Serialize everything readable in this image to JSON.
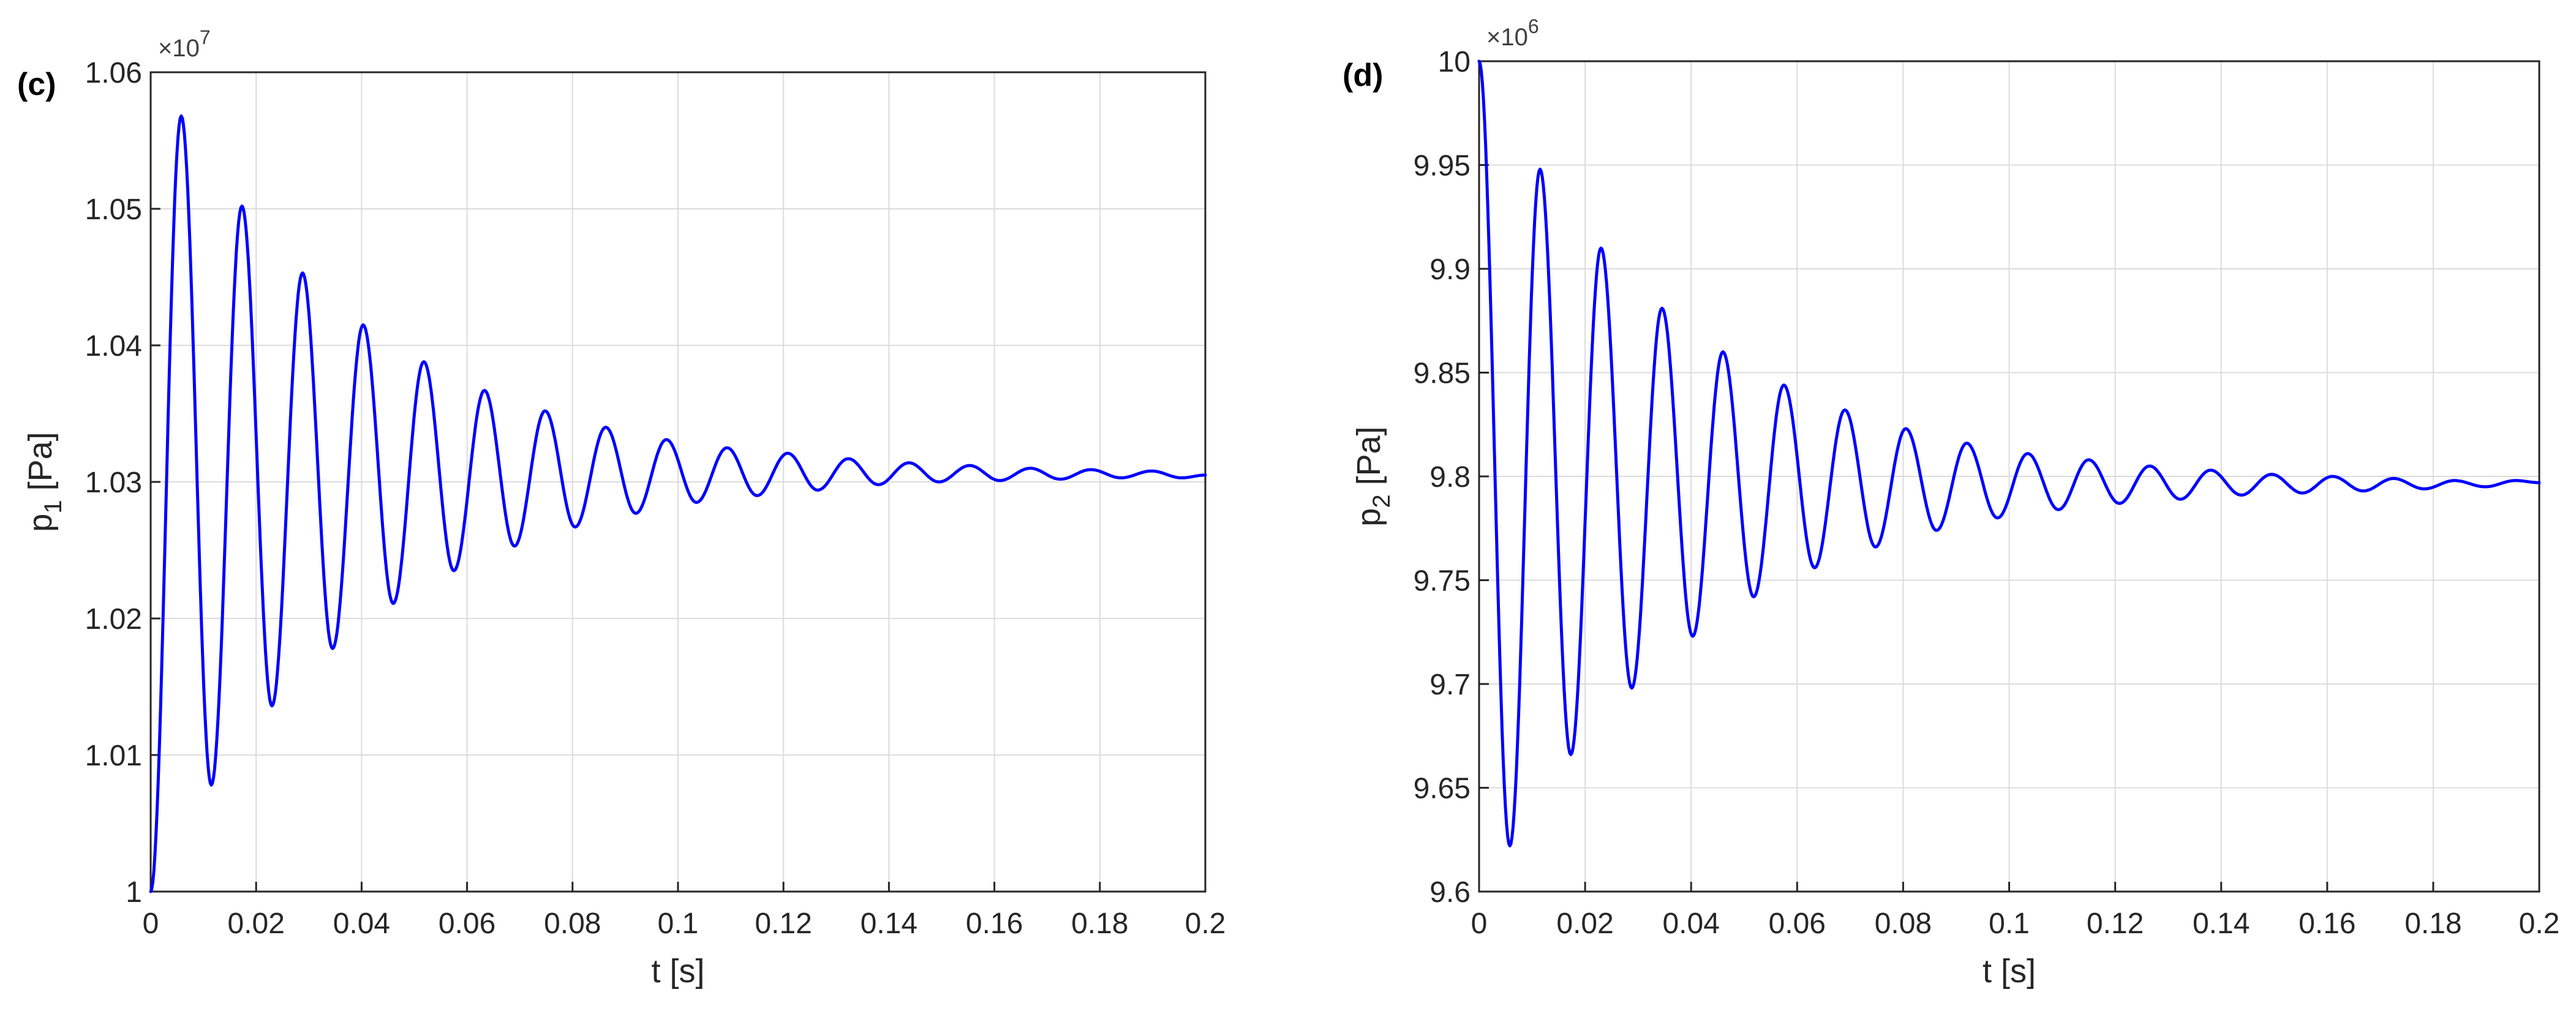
{
  "colors": {
    "series": "#0000ff",
    "axis": "#262626",
    "grid": "#dcdcdc",
    "background": "#ffffff"
  },
  "chart_data": [
    {
      "type": "line",
      "panel_label": "(c)",
      "title": "",
      "xlabel": "t [s]",
      "ylabel_main": "p",
      "ylabel_sub": "1",
      "ylabel_tail": " [Pa]",
      "exponent_base": "×10",
      "exponent_power": "7",
      "xlim": [
        0,
        0.2
      ],
      "ylim": [
        1.0,
        1.06
      ],
      "grid": true,
      "xticks": [
        0,
        0.02,
        0.04,
        0.06,
        0.08,
        0.1,
        0.12,
        0.14,
        0.16,
        0.18,
        0.2
      ],
      "xtick_labels": [
        "0",
        "0.02",
        "0.04",
        "0.06",
        "0.08",
        "0.1",
        "0.12",
        "0.14",
        "0.16",
        "0.18",
        "0.2"
      ],
      "yticks": [
        1.0,
        1.01,
        1.02,
        1.03,
        1.04,
        1.05,
        1.06
      ],
      "ytick_labels": [
        "1",
        "1.01",
        "1.02",
        "1.03",
        "1.04",
        "1.05",
        "1.06"
      ],
      "series": [
        {
          "color": "#0000ff",
          "x": [
            0,
            0.0058,
            0.0115,
            0.0173,
            0.023,
            0.0288,
            0.0345,
            0.0403,
            0.046,
            0.0518,
            0.0575,
            0.0633,
            0.069,
            0.0748,
            0.0805,
            0.0863,
            0.092,
            0.0978,
            0.1035,
            0.1093,
            0.115,
            0.1208,
            0.1265,
            0.1323,
            0.138,
            0.1438,
            0.1495,
            0.1553,
            0.161,
            0.1668,
            0.1725,
            0.1783,
            0.184,
            0.1898,
            0.1955,
            0.2
          ],
          "y": [
            1.0,
            1.0568,
            1.0078,
            1.0502,
            1.0136,
            1.0453,
            1.0178,
            1.0415,
            1.0211,
            1.0388,
            1.0235,
            1.0367,
            1.0253,
            1.0352,
            1.0267,
            1.034,
            1.0277,
            1.0331,
            1.0285,
            1.0325,
            1.029,
            1.0321,
            1.0294,
            1.0317,
            1.0298,
            1.0314,
            1.03,
            1.0312,
            1.0301,
            1.031,
            1.0302,
            1.0309,
            1.0303,
            1.0308,
            1.0303,
            1.0305
          ]
        }
      ]
    },
    {
      "type": "line",
      "panel_label": "(d)",
      "title": "",
      "xlabel": "t [s]",
      "ylabel_main": "p",
      "ylabel_sub": "2",
      "ylabel_tail": " [Pa]",
      "exponent_base": "×10",
      "exponent_power": "6",
      "xlim": [
        0,
        0.2
      ],
      "ylim": [
        9.6,
        10.0
      ],
      "grid": true,
      "xticks": [
        0,
        0.02,
        0.04,
        0.06,
        0.08,
        0.1,
        0.12,
        0.14,
        0.16,
        0.18,
        0.2
      ],
      "xtick_labels": [
        "0",
        "0.02",
        "0.04",
        "0.06",
        "0.08",
        "0.1",
        "0.12",
        "0.14",
        "0.16",
        "0.18",
        "0.2"
      ],
      "yticks": [
        9.6,
        9.65,
        9.7,
        9.75,
        9.8,
        9.85,
        9.9,
        9.95,
        10.0
      ],
      "ytick_labels": [
        "9.6",
        "9.65",
        "9.7",
        "9.75",
        "9.8",
        "9.85",
        "9.9",
        "9.95",
        "10"
      ],
      "series": [
        {
          "color": "#0000ff",
          "x": [
            0,
            0.0058,
            0.0115,
            0.0173,
            0.023,
            0.0288,
            0.0345,
            0.0403,
            0.046,
            0.0518,
            0.0575,
            0.0633,
            0.069,
            0.0748,
            0.0805,
            0.0863,
            0.092,
            0.0978,
            0.1035,
            0.1093,
            0.115,
            0.1208,
            0.1265,
            0.1323,
            0.138,
            0.1438,
            0.1495,
            0.1553,
            0.161,
            0.1668,
            0.1725,
            0.1783,
            0.184,
            0.1898,
            0.1955,
            0.2
          ],
          "y": [
            10.0,
            9.622,
            9.948,
            9.666,
            9.91,
            9.698,
            9.881,
            9.723,
            9.86,
            9.742,
            9.844,
            9.756,
            9.832,
            9.766,
            9.823,
            9.774,
            9.816,
            9.78,
            9.811,
            9.784,
            9.808,
            9.787,
            9.805,
            9.789,
            9.803,
            9.791,
            9.801,
            9.792,
            9.8,
            9.793,
            9.799,
            9.794,
            9.798,
            9.795,
            9.798,
            9.797
          ]
        }
      ]
    }
  ]
}
